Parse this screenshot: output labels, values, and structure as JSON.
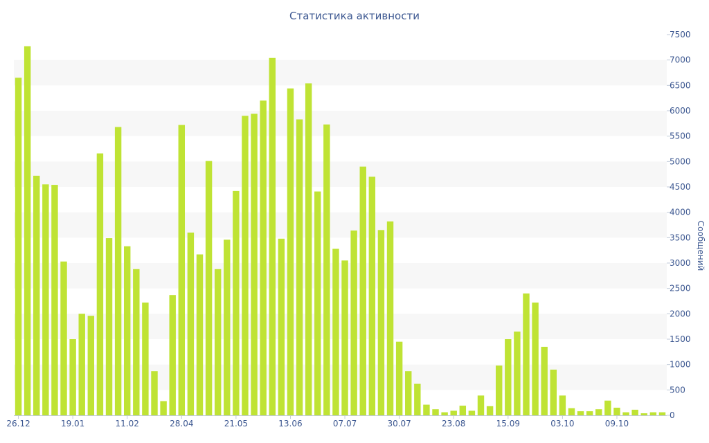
{
  "chart_data": {
    "type": "bar",
    "title": "Статистика активности",
    "xlabel": "",
    "ylabel": "Сообщений",
    "ylim": [
      0,
      7500
    ],
    "y_ticks": [
      0,
      500,
      1000,
      1500,
      2000,
      2500,
      3000,
      3500,
      4000,
      4500,
      5000,
      5500,
      6000,
      6500,
      7000,
      7500
    ],
    "y_axis_side": "right",
    "grid": "alternating horizontal bands",
    "bar_color": "#bfe334",
    "text_color": "#3d5891",
    "band_color": "#f7f7f7",
    "x_tick_labels": [
      {
        "index": 0,
        "label": "26.12"
      },
      {
        "index": 6,
        "label": "19.01"
      },
      {
        "index": 12,
        "label": "11.02"
      },
      {
        "index": 18,
        "label": "28.04"
      },
      {
        "index": 24,
        "label": "21.05"
      },
      {
        "index": 30,
        "label": "13.06"
      },
      {
        "index": 36,
        "label": "07.07"
      },
      {
        "index": 42,
        "label": "30.07"
      },
      {
        "index": 48,
        "label": "23.08"
      },
      {
        "index": 54,
        "label": "15.09"
      },
      {
        "index": 60,
        "label": "03.10"
      },
      {
        "index": 66,
        "label": "09.10"
      }
    ],
    "values": [
      6650,
      7270,
      4720,
      4550,
      4540,
      3030,
      1500,
      2000,
      1960,
      5160,
      3490,
      5680,
      3330,
      2880,
      2220,
      870,
      280,
      2370,
      5720,
      3600,
      3170,
      5010,
      2880,
      3460,
      4420,
      5900,
      5940,
      6200,
      7040,
      3480,
      6440,
      5830,
      6540,
      4410,
      5730,
      3280,
      3050,
      3640,
      4900,
      4700,
      3650,
      3820,
      1450,
      870,
      620,
      210,
      120,
      60,
      90,
      190,
      90,
      390,
      180,
      980,
      1500,
      1650,
      2400,
      2220,
      1350,
      900,
      390,
      140,
      80,
      80,
      120,
      290,
      150,
      60,
      110,
      40,
      60,
      60
    ]
  }
}
